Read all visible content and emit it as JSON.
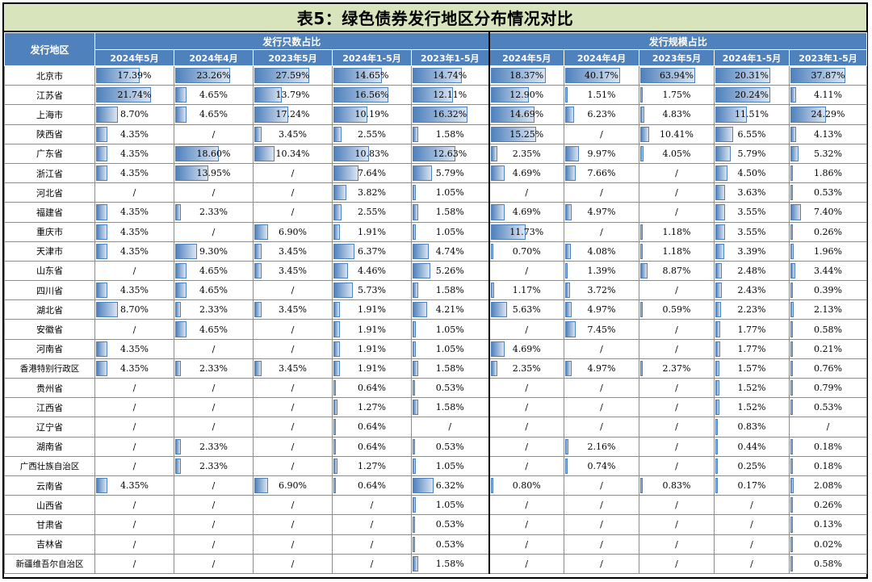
{
  "title": "表5：绿色债券发行地区分布情况对比",
  "header": {
    "region": "发行地区",
    "group_count": "发行只数占比",
    "group_scale": "发行规模占比",
    "columns": [
      "2024年5月",
      "2024年4月",
      "2023年5月",
      "2024年1-5月",
      "2023年1-5月",
      "2024年5月",
      "2024年4月",
      "2023年5月",
      "2024年1-5月",
      "2023年1-5月"
    ]
  },
  "colors": {
    "header_bg": "#4f81bd",
    "title_bg": "#d8e4bc",
    "bar": "#4f81bd"
  },
  "rows": [
    {
      "region": "北京市",
      "cells": [
        "17.39%",
        "23.26%",
        "27.59%",
        "14.65%",
        "14.74%",
        "18.37%",
        "40.17%",
        "63.94%",
        "20.31%",
        "37.87%"
      ]
    },
    {
      "region": "江苏省",
      "cells": [
        "21.74%",
        "4.65%",
        "13.79%",
        "16.56%",
        "12.11%",
        "12.90%",
        "1.51%",
        "1.75%",
        "20.24%",
        "4.11%"
      ]
    },
    {
      "region": "上海市",
      "cells": [
        "8.70%",
        "4.65%",
        "17.24%",
        "10.19%",
        "16.32%",
        "14.69%",
        "6.23%",
        "4.83%",
        "11.51%",
        "24.29%"
      ]
    },
    {
      "region": "陕西省",
      "cells": [
        "4.35%",
        "/",
        "3.45%",
        "2.55%",
        "1.58%",
        "15.25%",
        "/",
        "10.41%",
        "6.55%",
        "4.13%"
      ]
    },
    {
      "region": "广东省",
      "cells": [
        "4.35%",
        "18.60%",
        "10.34%",
        "10.83%",
        "12.63%",
        "2.35%",
        "9.97%",
        "4.05%",
        "5.79%",
        "5.32%"
      ]
    },
    {
      "region": "浙江省",
      "cells": [
        "4.35%",
        "13.95%",
        "/",
        "7.64%",
        "5.79%",
        "4.69%",
        "7.66%",
        "/",
        "4.50%",
        "1.86%"
      ]
    },
    {
      "region": "河北省",
      "cells": [
        "/",
        "/",
        "/",
        "3.82%",
        "1.05%",
        "/",
        "/",
        "/",
        "3.63%",
        "0.53%"
      ]
    },
    {
      "region": "福建省",
      "cells": [
        "4.35%",
        "2.33%",
        "/",
        "2.55%",
        "1.58%",
        "4.69%",
        "4.97%",
        "/",
        "3.55%",
        "7.40%"
      ]
    },
    {
      "region": "重庆市",
      "cells": [
        "4.35%",
        "/",
        "6.90%",
        "1.91%",
        "1.05%",
        "11.73%",
        "/",
        "1.18%",
        "3.55%",
        "0.26%"
      ]
    },
    {
      "region": "天津市",
      "cells": [
        "4.35%",
        "9.30%",
        "3.45%",
        "6.37%",
        "4.74%",
        "0.70%",
        "4.08%",
        "1.18%",
        "3.39%",
        "1.96%"
      ]
    },
    {
      "region": "山东省",
      "cells": [
        "/",
        "4.65%",
        "3.45%",
        "4.46%",
        "5.26%",
        "/",
        "1.39%",
        "8.87%",
        "2.48%",
        "3.44%"
      ]
    },
    {
      "region": "四川省",
      "cells": [
        "4.35%",
        "4.65%",
        "/",
        "5.73%",
        "1.58%",
        "1.17%",
        "3.72%",
        "/",
        "2.43%",
        "0.39%"
      ]
    },
    {
      "region": "湖北省",
      "cells": [
        "8.70%",
        "2.33%",
        "3.45%",
        "1.91%",
        "4.21%",
        "5.63%",
        "4.97%",
        "0.59%",
        "2.23%",
        "2.13%"
      ]
    },
    {
      "region": "安徽省",
      "cells": [
        "/",
        "4.65%",
        "/",
        "1.91%",
        "1.05%",
        "/",
        "7.45%",
        "/",
        "1.77%",
        "0.58%"
      ]
    },
    {
      "region": "河南省",
      "cells": [
        "4.35%",
        "/",
        "/",
        "1.91%",
        "1.05%",
        "4.69%",
        "/",
        "/",
        "1.77%",
        "0.21%"
      ]
    },
    {
      "region": "香港特别行政区",
      "cells": [
        "4.35%",
        "2.33%",
        "3.45%",
        "1.91%",
        "1.58%",
        "2.35%",
        "4.97%",
        "2.37%",
        "1.57%",
        "0.76%"
      ]
    },
    {
      "region": "贵州省",
      "cells": [
        "/",
        "/",
        "/",
        "0.64%",
        "0.53%",
        "/",
        "/",
        "/",
        "1.52%",
        "0.79%"
      ]
    },
    {
      "region": "江西省",
      "cells": [
        "/",
        "/",
        "/",
        "1.27%",
        "1.58%",
        "/",
        "/",
        "/",
        "1.52%",
        "0.53%"
      ]
    },
    {
      "region": "辽宁省",
      "cells": [
        "/",
        "/",
        "/",
        "0.64%",
        "/",
        "/",
        "/",
        "/",
        "0.83%",
        "/"
      ]
    },
    {
      "region": "湖南省",
      "cells": [
        "/",
        "2.33%",
        "/",
        "0.64%",
        "0.53%",
        "/",
        "2.16%",
        "/",
        "0.44%",
        "0.18%"
      ]
    },
    {
      "region": "广西壮族自治区",
      "cells": [
        "/",
        "2.33%",
        "/",
        "1.27%",
        "1.05%",
        "/",
        "0.74%",
        "/",
        "0.25%",
        "0.18%"
      ]
    },
    {
      "region": "云南省",
      "cells": [
        "4.35%",
        "/",
        "6.90%",
        "0.64%",
        "6.32%",
        "0.80%",
        "/",
        "0.83%",
        "0.17%",
        "2.08%"
      ]
    },
    {
      "region": "山西省",
      "cells": [
        "/",
        "/",
        "/",
        "/",
        "1.05%",
        "/",
        "/",
        "/",
        "/",
        "0.26%"
      ]
    },
    {
      "region": "甘肃省",
      "cells": [
        "/",
        "/",
        "/",
        "/",
        "0.53%",
        "/",
        "/",
        "/",
        "/",
        "0.13%"
      ]
    },
    {
      "region": "吉林省",
      "cells": [
        "/",
        "/",
        "/",
        "/",
        "0.53%",
        "/",
        "/",
        "/",
        "/",
        "0.02%"
      ]
    },
    {
      "region": "新疆维吾尔自治区",
      "cells": [
        "/",
        "/",
        "/",
        "/",
        "1.58%",
        "/",
        "/",
        "/",
        "/",
        "0.58%"
      ]
    }
  ]
}
